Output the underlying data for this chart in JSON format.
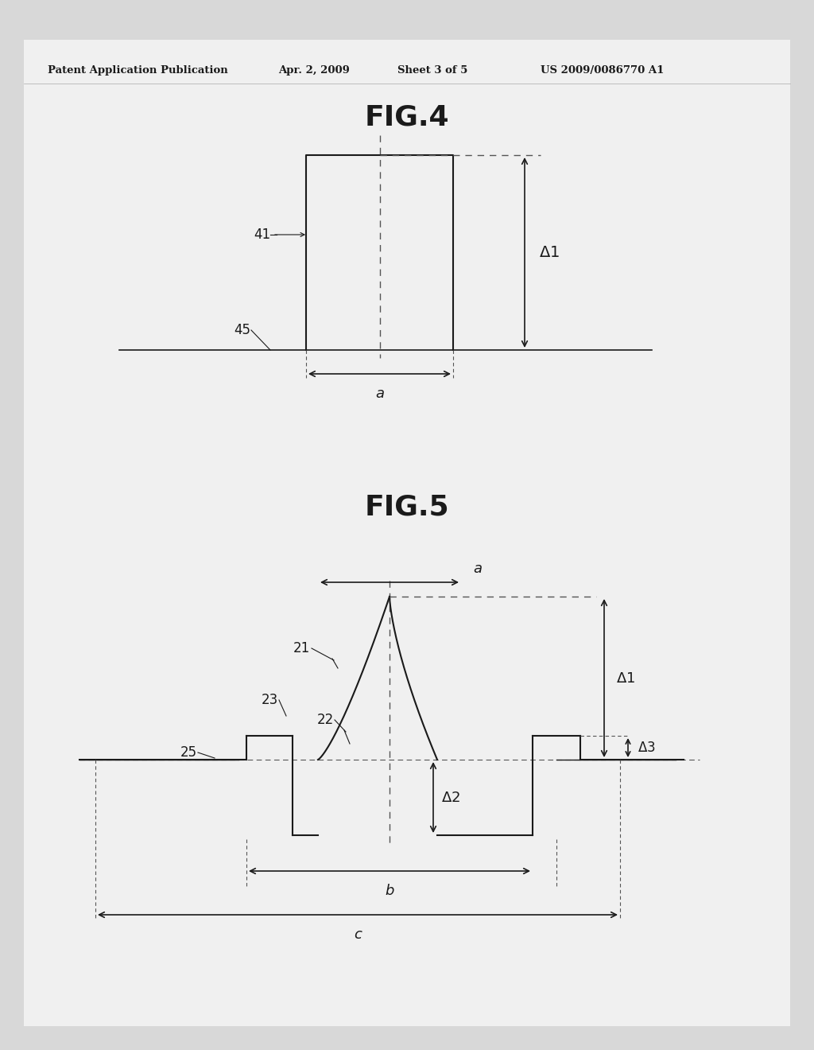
{
  "bg_color": "#d8d8d8",
  "inner_bg_color": "#f0f0f0",
  "header_text": "Patent Application Publication",
  "header_date": "Apr. 2, 2009",
  "header_sheet": "Sheet 3 of 5",
  "header_patent": "US 2009/0086770 A1",
  "fig4_title": "FIG.4",
  "fig5_title": "FIG.5",
  "line_color": "#1a1a1a",
  "dashed_color": "#555555"
}
